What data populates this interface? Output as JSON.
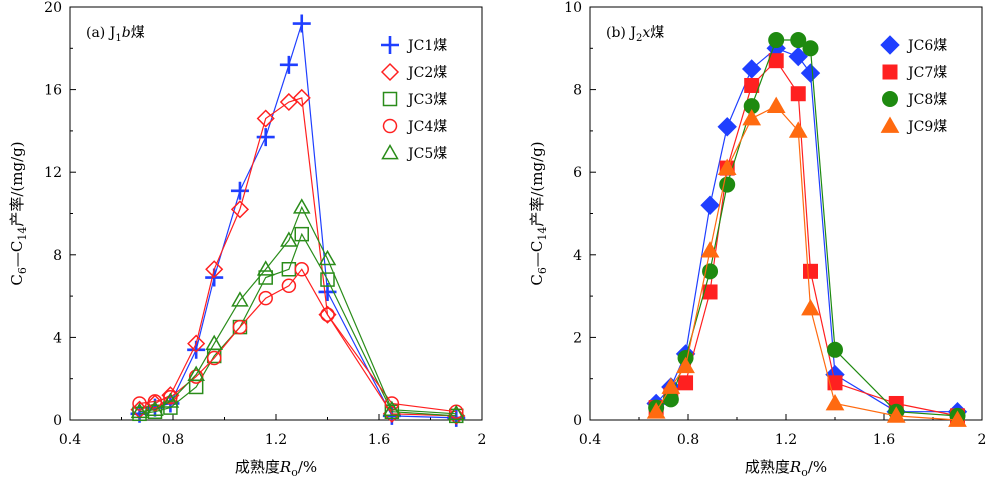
{
  "chart_data": [
    {
      "type": "line",
      "title": "(a) J1b煤",
      "title_parts": {
        "prefix": "(a) J",
        "sub": "1",
        "ital": "b",
        "suffix": "煤"
      },
      "xlabel": "成熟度Ro/%",
      "xlabel_parts": {
        "main": "成熟度",
        "ital": "R",
        "sub": "o",
        "tail": "/%"
      },
      "ylabel": "C6—C14产率/(mg/g)",
      "ylabel_parts": {
        "c1": "C",
        "s1": "6",
        "mid": "—C",
        "s2": "14",
        "tail": "产率/(mg/g)"
      },
      "xlim": [
        0.4,
        2.0
      ],
      "ylim": [
        0,
        20
      ],
      "xticks": [
        0.4,
        0.8,
        1.2,
        1.6,
        2.0
      ],
      "xtick_labels": [
        "0.4",
        "0.8",
        "1.2",
        "1.6",
        "2"
      ],
      "yticks": [
        0,
        4,
        8,
        12,
        16,
        20
      ],
      "ytick_labels": [
        "0",
        "4",
        "8",
        "12",
        "16",
        "20"
      ],
      "legend_position": "top-right",
      "series": [
        {
          "name": "JC1煤",
          "marker": "plus",
          "color": "#1f3fff",
          "x": [
            0.67,
            0.73,
            0.79,
            0.89,
            0.96,
            1.06,
            1.16,
            1.25,
            1.3,
            1.4,
            1.65,
            1.9
          ],
          "y": [
            0.3,
            0.6,
            0.8,
            3.4,
            6.9,
            11.1,
            13.7,
            17.2,
            19.2,
            6.2,
            0.2,
            0.1
          ]
        },
        {
          "name": "JC2煤",
          "marker": "diamond-open",
          "color": "#ff2020",
          "x": [
            0.67,
            0.73,
            0.79,
            0.89,
            0.96,
            1.06,
            1.16,
            1.25,
            1.3,
            1.4,
            1.65,
            1.9
          ],
          "y": [
            0.5,
            0.8,
            1.2,
            3.7,
            7.3,
            10.2,
            14.6,
            15.4,
            15.6,
            5.1,
            0.3,
            0.2
          ]
        },
        {
          "name": "JC3煤",
          "marker": "square-open",
          "color": "#2a8c1a",
          "x": [
            0.67,
            0.73,
            0.79,
            0.89,
            0.96,
            1.06,
            1.16,
            1.25,
            1.3,
            1.4,
            1.65,
            1.9
          ],
          "y": [
            0.3,
            0.4,
            0.6,
            1.6,
            3.1,
            4.5,
            6.9,
            7.3,
            9.0,
            6.8,
            0.4,
            0.2
          ]
        },
        {
          "name": "JC4煤",
          "marker": "circle-open",
          "color": "#ff2020",
          "x": [
            0.67,
            0.73,
            0.79,
            0.89,
            0.96,
            1.06,
            1.16,
            1.25,
            1.3,
            1.4,
            1.65,
            1.9
          ],
          "y": [
            0.8,
            0.9,
            1.1,
            2.1,
            3.0,
            4.5,
            5.9,
            6.5,
            7.3,
            5.1,
            0.8,
            0.4
          ]
        },
        {
          "name": "JC5煤",
          "marker": "triangle-open",
          "color": "#2a8c1a",
          "x": [
            0.67,
            0.73,
            0.79,
            0.89,
            0.96,
            1.06,
            1.16,
            1.25,
            1.3,
            1.4,
            1.65,
            1.9
          ],
          "y": [
            0.4,
            0.5,
            0.9,
            2.2,
            3.7,
            5.8,
            7.3,
            8.7,
            10.3,
            7.8,
            0.5,
            0.3
          ]
        }
      ]
    },
    {
      "type": "line",
      "title": "(b) J2x煤",
      "title_parts": {
        "prefix": "(b) J",
        "sub": "2",
        "ital": "x",
        "suffix": "煤"
      },
      "xlabel": "成熟度Ro/%",
      "xlabel_parts": {
        "main": "成熟度",
        "ital": "R",
        "sub": "o",
        "tail": "/%"
      },
      "ylabel": "C6—C14产率/(mg/g)",
      "ylabel_parts": {
        "c1": "C",
        "s1": "6",
        "mid": "—C",
        "s2": "14",
        "tail": "产率/(mg/g)"
      },
      "xlim": [
        0.4,
        2.0
      ],
      "ylim": [
        0,
        10
      ],
      "xticks": [
        0.4,
        0.8,
        1.2,
        1.6,
        2.0
      ],
      "xtick_labels": [
        "0.4",
        "0.8",
        "1.2",
        "1.6",
        "2"
      ],
      "yticks": [
        0,
        2,
        4,
        6,
        8,
        10
      ],
      "ytick_labels": [
        "0",
        "2",
        "4",
        "6",
        "8",
        "10"
      ],
      "legend_position": "top-right",
      "series": [
        {
          "name": "JC6煤",
          "marker": "diamond-filled",
          "color": "#1f3fff",
          "x": [
            0.67,
            0.73,
            0.79,
            0.89,
            0.96,
            1.06,
            1.16,
            1.25,
            1.3,
            1.4,
            1.65,
            1.9
          ],
          "y": [
            0.4,
            0.8,
            1.6,
            5.2,
            7.1,
            8.5,
            9.0,
            8.8,
            8.4,
            1.1,
            0.2,
            0.2
          ]
        },
        {
          "name": "JC7煤",
          "marker": "square-filled",
          "color": "#ff2020",
          "x": [
            0.67,
            0.73,
            0.79,
            0.89,
            0.96,
            1.06,
            1.16,
            1.25,
            1.3,
            1.4,
            1.65,
            1.9
          ],
          "y": [
            0.3,
            0.6,
            0.9,
            3.1,
            6.1,
            8.1,
            8.7,
            7.9,
            3.6,
            0.9,
            0.4,
            0.1
          ]
        },
        {
          "name": "JC8煤",
          "marker": "circle-filled",
          "color": "#1e8a10",
          "x": [
            0.67,
            0.73,
            0.79,
            0.89,
            0.96,
            1.06,
            1.16,
            1.25,
            1.3,
            1.4,
            1.65,
            1.9
          ],
          "y": [
            0.3,
            0.5,
            1.5,
            3.6,
            5.7,
            7.6,
            9.2,
            9.2,
            9.0,
            1.7,
            0.2,
            0.1
          ]
        },
        {
          "name": "JC9煤",
          "marker": "triangle-filled",
          "color": "#ff6a10",
          "x": [
            0.67,
            0.73,
            0.79,
            0.89,
            0.96,
            1.06,
            1.16,
            1.25,
            1.3,
            1.4,
            1.65,
            1.9
          ],
          "y": [
            0.2,
            0.8,
            1.3,
            4.1,
            6.1,
            7.3,
            7.6,
            7.0,
            2.7,
            0.4,
            0.1,
            0.0
          ]
        }
      ]
    }
  ]
}
